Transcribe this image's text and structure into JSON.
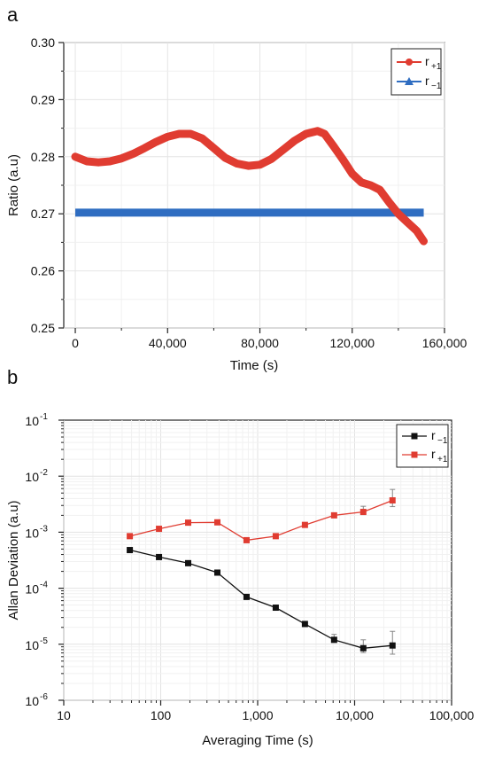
{
  "panels": {
    "a": {
      "letter": "a"
    },
    "b": {
      "letter": "b"
    }
  },
  "chart_data": [
    {
      "type": "line",
      "panel": "a",
      "xlabel": "Time (s)",
      "ylabel": "Ratio (a.u)",
      "xlim": [
        -5000,
        160000
      ],
      "ylim": [
        0.25,
        0.3
      ],
      "xticks": [
        0,
        40000,
        80000,
        120000,
        160000
      ],
      "xtick_labels": [
        "0",
        "40,000",
        "80,000",
        "120,000",
        "160,000"
      ],
      "yticks": [
        0.25,
        0.26,
        0.27,
        0.28,
        0.29,
        0.3
      ],
      "ytick_labels": [
        "0.25",
        "0.26",
        "0.27",
        "0.28",
        "0.29",
        "0.30"
      ],
      "grid": true,
      "legend_position": "top-right",
      "series": [
        {
          "name": "r+1",
          "label_main": "r",
          "label_sub": "+1",
          "color": "#e03c31",
          "marker": "circle",
          "x": [
            0,
            5000,
            10000,
            15000,
            20000,
            25000,
            30000,
            35000,
            40000,
            45000,
            50000,
            55000,
            60000,
            65000,
            70000,
            75000,
            80000,
            85000,
            90000,
            95000,
            100000,
            105000,
            108000,
            112000,
            116000,
            120000,
            124000,
            128000,
            132000,
            136000,
            140000,
            144000,
            148000,
            151000
          ],
          "y": [
            0.28,
            0.2792,
            0.279,
            0.2792,
            0.2797,
            0.2805,
            0.2815,
            0.2826,
            0.2835,
            0.284,
            0.284,
            0.2832,
            0.2815,
            0.2798,
            0.2788,
            0.2784,
            0.2786,
            0.2796,
            0.2812,
            0.2828,
            0.284,
            0.2845,
            0.284,
            0.2818,
            0.2795,
            0.277,
            0.2755,
            0.275,
            0.2742,
            0.272,
            0.27,
            0.2685,
            0.267,
            0.2652
          ]
        },
        {
          "name": "r−1",
          "label_main": "r",
          "label_sub": "−1",
          "color": "#2f6dc1",
          "marker": "triangle",
          "x": [
            0,
            151000
          ],
          "y": [
            0.2702,
            0.2702
          ]
        }
      ]
    },
    {
      "type": "line",
      "panel": "b",
      "xlabel": "Averaging Time (s)",
      "ylabel": "Allan Deviation (a.u)",
      "xscale": "log",
      "yscale": "log",
      "xlim": [
        10,
        100000
      ],
      "ylim": [
        1e-06,
        0.1
      ],
      "xticks": [
        10,
        100,
        1000,
        10000,
        100000
      ],
      "xtick_labels": [
        "10",
        "100",
        "1,000",
        "10,000",
        "100,000"
      ],
      "yticks": [
        1e-06,
        1e-05,
        0.0001,
        0.001,
        0.01,
        0.1
      ],
      "ytick_labels": [
        {
          "base": "10",
          "exp": "-6"
        },
        {
          "base": "10",
          "exp": "-5"
        },
        {
          "base": "10",
          "exp": "-4"
        },
        {
          "base": "10",
          "exp": "-3"
        },
        {
          "base": "10",
          "exp": "-2"
        },
        {
          "base": "10",
          "exp": "-1"
        }
      ],
      "grid": true,
      "legend_position": "top-right",
      "series": [
        {
          "name": "r−1",
          "label_main": "r",
          "label_sub": "−1",
          "color": "#111111",
          "marker": "square",
          "x": [
            48,
            96,
            192,
            384,
            768,
            1536,
            3072,
            6144,
            12288,
            24576
          ],
          "y": [
            0.00048,
            0.00036,
            0.00028,
            0.00019,
            7e-05,
            4.5e-05,
            2.3e-05,
            1.2e-05,
            8.5e-06,
            9.5e-06
          ],
          "err": [
            0,
            0,
            0,
            0,
            0,
            0,
            0,
            3e-06,
            3.5e-06,
            7.5e-06
          ]
        },
        {
          "name": "r+1",
          "label_main": "r",
          "label_sub": "+1",
          "color": "#e03c31",
          "marker": "square",
          "x": [
            48,
            96,
            192,
            384,
            768,
            1536,
            3072,
            6144,
            12288,
            24576
          ],
          "y": [
            0.00085,
            0.00115,
            0.00148,
            0.0015,
            0.00072,
            0.00085,
            0.00135,
            0.002,
            0.0023,
            0.0037
          ],
          "err": [
            0,
            0,
            0,
            0,
            0,
            0,
            0.0001,
            0.0002,
            0.0006,
            0.0021
          ]
        }
      ]
    }
  ]
}
